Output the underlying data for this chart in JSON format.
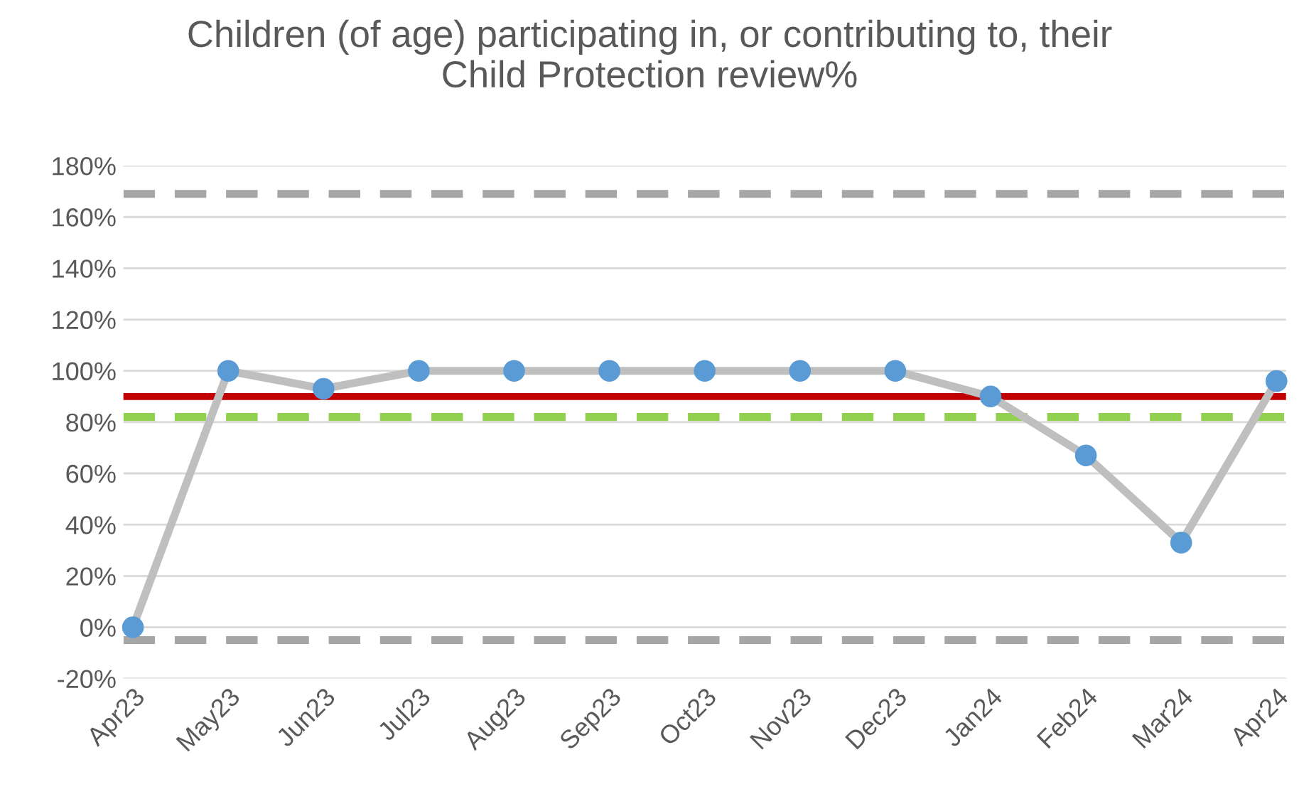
{
  "chart_data": {
    "type": "line",
    "title": "Children (of age) participating in, or contributing to, their\nChild Protection review%",
    "categories": [
      "Apr23",
      "May23",
      "Jun23",
      "Jul23",
      "Aug23",
      "Sep23",
      "Oct23",
      "Nov23",
      "Dec23",
      "Jan24",
      "Feb24",
      "Mar24",
      "Apr24"
    ],
    "series": [
      {
        "color": "#bfbfbf",
        "colors": [
          "#5b9bd5",
          "#5b9bd5",
          "#5b9bd5",
          "#5b9bd5",
          "#5b9bd5",
          "#5b9bd5",
          "#5b9bd5",
          "#5b9bd5",
          "#5b9bd5",
          "#5b9bd5",
          "#5b9bd5",
          "#5b9bd5",
          "#5b9bd5"
        ],
        "values": [
          0,
          100,
          93,
          100,
          100,
          100,
          100,
          100,
          100,
          90,
          67,
          33,
          96
        ]
      }
    ],
    "marker": "circle",
    "line_style": "solid",
    "ylim": [
      -20,
      180
    ],
    "yticks": [
      {
        "value": -20,
        "label": "-20%"
      },
      {
        "value": 0,
        "label": "0%"
      },
      {
        "value": 20,
        "label": "20%"
      },
      {
        "value": 40,
        "label": "40%"
      },
      {
        "value": 60,
        "label": "60%"
      },
      {
        "value": 80,
        "label": "80%"
      },
      {
        "value": 100,
        "label": "100%"
      },
      {
        "value": 120,
        "label": "120%"
      },
      {
        "value": 140,
        "label": "140%"
      },
      {
        "value": 160,
        "label": "160%"
      },
      {
        "value": 180,
        "label": "180%"
      }
    ],
    "grid": "y",
    "legend": false,
    "ref_lines": [
      {
        "axis": "y",
        "value": 169,
        "color": "#a6a6a6",
        "line_style": "dashed"
      },
      {
        "axis": "y",
        "value": -5,
        "color": "#a6a6a6",
        "line_style": "dashed"
      },
      {
        "axis": "y",
        "value": 82,
        "color": "#92d050",
        "line_style": "dashed"
      },
      {
        "axis": "y",
        "value": 90,
        "color": "#c00000",
        "line_style": "solid"
      }
    ]
  }
}
